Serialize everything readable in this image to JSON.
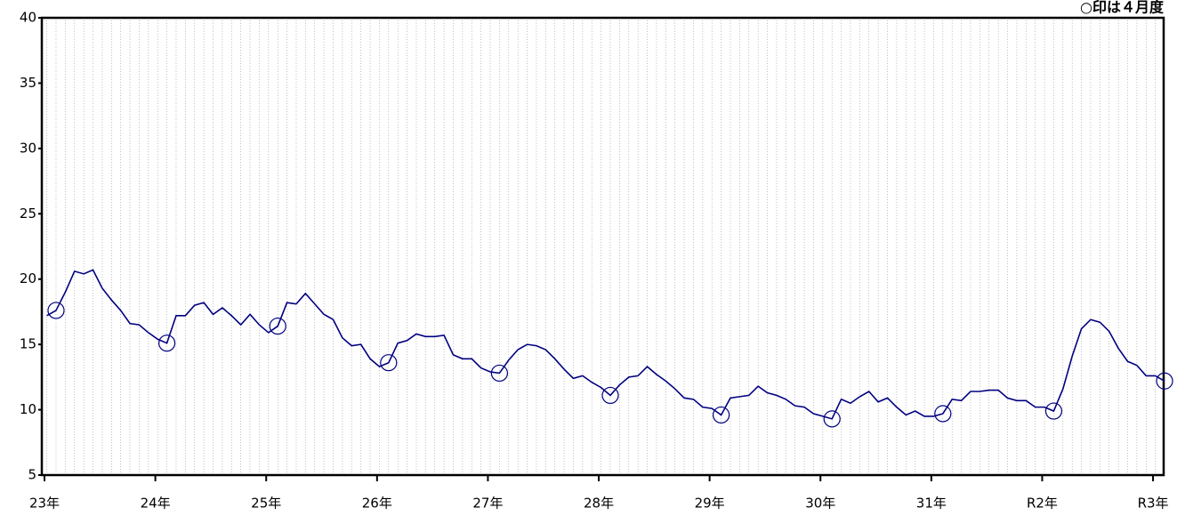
{
  "chart_data": {
    "type": "line",
    "annotation": "○印は４月度",
    "x": [
      -1,
      0,
      1,
      2,
      3,
      4,
      5,
      6,
      7,
      8,
      9,
      10,
      11,
      12,
      13,
      14,
      15,
      16,
      17,
      18,
      19,
      20,
      21,
      22,
      23,
      24,
      25,
      26,
      27,
      28,
      29,
      30,
      31,
      32,
      33,
      34,
      35,
      36,
      37,
      38,
      39,
      40,
      41,
      42,
      43,
      44,
      45,
      46,
      47,
      48,
      49,
      50,
      51,
      52,
      53,
      54,
      55,
      56,
      57,
      58,
      59,
      60,
      61,
      62,
      63,
      64,
      65,
      66,
      67,
      68,
      69,
      70,
      71,
      72,
      73,
      74,
      75,
      76,
      77,
      78,
      79,
      80,
      81,
      82,
      83,
      84,
      85,
      86,
      87,
      88,
      89,
      90,
      91,
      92,
      93,
      94,
      95,
      96,
      97,
      98,
      99,
      100,
      101,
      102,
      103,
      104,
      105,
      106,
      107,
      108,
      109,
      110,
      111,
      112,
      113,
      114,
      115,
      116,
      117,
      118,
      119,
      120
    ],
    "series": [
      {
        "color": "#000080",
        "marker_every": 12,
        "values": [
          17.2,
          17.6,
          19.0,
          20.6,
          20.4,
          20.7,
          19.3,
          18.4,
          17.6,
          16.6,
          16.5,
          15.9,
          15.4,
          15.1,
          17.2,
          17.2,
          18.0,
          18.2,
          17.3,
          17.8,
          17.2,
          16.5,
          17.3,
          16.5,
          15.9,
          16.4,
          18.2,
          18.1,
          18.9,
          18.1,
          17.3,
          16.9,
          15.5,
          14.9,
          15.0,
          13.9,
          13.3,
          13.6,
          15.1,
          15.3,
          15.8,
          15.6,
          15.6,
          15.7,
          14.2,
          13.9,
          13.9,
          13.2,
          12.9,
          12.8,
          13.8,
          14.6,
          15.0,
          14.9,
          14.6,
          13.9,
          13.1,
          12.4,
          12.6,
          12.1,
          11.7,
          11.1,
          11.9,
          12.5,
          12.6,
          13.3,
          12.7,
          12.2,
          11.6,
          10.9,
          10.8,
          10.2,
          10.1,
          9.6,
          10.9,
          11.0,
          11.1,
          11.8,
          11.3,
          11.1,
          10.8,
          10.3,
          10.2,
          9.7,
          9.5,
          9.3,
          10.8,
          10.5,
          11.0,
          11.4,
          10.6,
          10.9,
          10.2,
          9.6,
          9.9,
          9.5,
          9.5,
          9.7,
          10.8,
          10.7,
          11.4,
          11.4,
          11.5,
          11.5,
          10.9,
          10.7,
          10.7,
          10.2,
          10.2,
          9.9,
          11.6,
          14.1,
          16.2,
          16.9,
          16.7,
          16.0,
          14.7,
          13.7,
          13.4,
          12.6,
          12.6,
          12.2
        ]
      }
    ],
    "xlim": [
      -1.54,
      119.9
    ],
    "xticks": [
      {
        "value": -1.25,
        "label": "23年"
      },
      {
        "value": 10.75,
        "label": "24年"
      },
      {
        "value": 22.75,
        "label": "25年"
      },
      {
        "value": 34.75,
        "label": "26年"
      },
      {
        "value": 46.75,
        "label": "27年"
      },
      {
        "value": 58.75,
        "label": "28年"
      },
      {
        "value": 70.75,
        "label": "29年"
      },
      {
        "value": 82.75,
        "label": "30年"
      },
      {
        "value": 94.75,
        "label": "31年"
      },
      {
        "value": 106.75,
        "label": "R2年"
      },
      {
        "value": 118.75,
        "label": "R3年"
      }
    ],
    "ylim": [
      5,
      40
    ],
    "yticks": [
      5,
      10,
      15,
      20,
      25,
      30,
      35,
      40
    ],
    "grid": true
  }
}
